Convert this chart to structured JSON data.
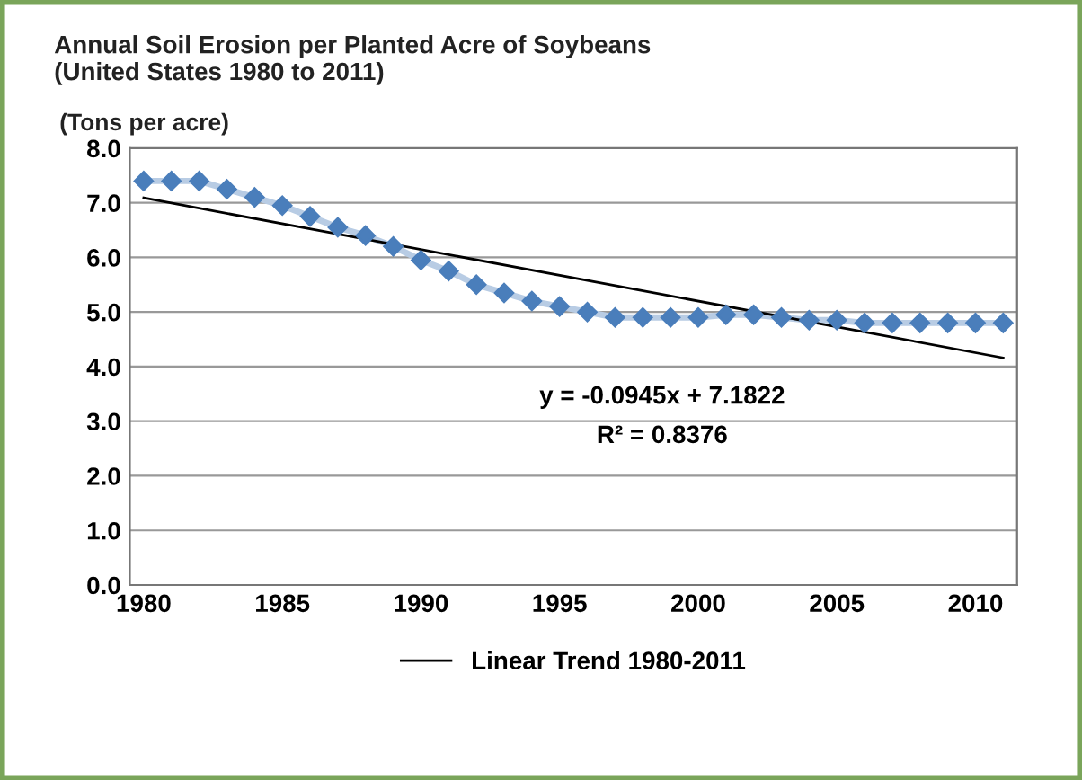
{
  "chart_data": {
    "type": "line",
    "title": "Annual Soil Erosion per Planted Acre of Soybeans\n(United States 1980 to 2011)",
    "ylabel": "(Tons per acre)",
    "x": [
      1980,
      1981,
      1982,
      1983,
      1984,
      1985,
      1986,
      1987,
      1988,
      1989,
      1990,
      1991,
      1992,
      1993,
      1994,
      1995,
      1996,
      1997,
      1998,
      1999,
      2000,
      2001,
      2002,
      2003,
      2004,
      2005,
      2006,
      2007,
      2008,
      2009,
      2010,
      2011
    ],
    "series": [
      {
        "color": "#4a7ebb",
        "marker": "diamond",
        "values": [
          7.4,
          7.4,
          7.4,
          7.25,
          7.1,
          6.95,
          6.75,
          6.55,
          6.4,
          6.2,
          5.95,
          5.75,
          5.5,
          5.35,
          5.2,
          5.1,
          5.0,
          4.9,
          4.9,
          4.9,
          4.9,
          4.95,
          4.95,
          4.9,
          4.85,
          4.85,
          4.8,
          4.8,
          4.8,
          4.8,
          4.8,
          4.8
        ]
      },
      {
        "name": "Linear Trend 1980-2011",
        "color": "#000000",
        "marker": "none",
        "x": [
          1980,
          2011
        ],
        "values": [
          7.09,
          4.16
        ]
      }
    ],
    "annotations": [
      "y = -0.0945x + 7.1822",
      "R² = 0.8376"
    ],
    "xlim": [
      1979.5,
      2011.5
    ],
    "xticks": [
      1980,
      1985,
      1990,
      1995,
      2000,
      2005,
      2010
    ],
    "ylim": [
      0,
      8
    ],
    "yticks": [
      {
        "value": 0,
        "label": "0.0"
      },
      {
        "value": 1,
        "label": "1.0"
      },
      {
        "value": 2,
        "label": "2.0"
      },
      {
        "value": 3,
        "label": "3.0"
      },
      {
        "value": 4,
        "label": "4.0"
      },
      {
        "value": 5,
        "label": "5.0"
      },
      {
        "value": 6,
        "label": "6.0"
      },
      {
        "value": 7,
        "label": "7.0"
      },
      {
        "value": 8,
        "label": "8.0"
      }
    ],
    "grid": "y",
    "legend": "bottom"
  }
}
